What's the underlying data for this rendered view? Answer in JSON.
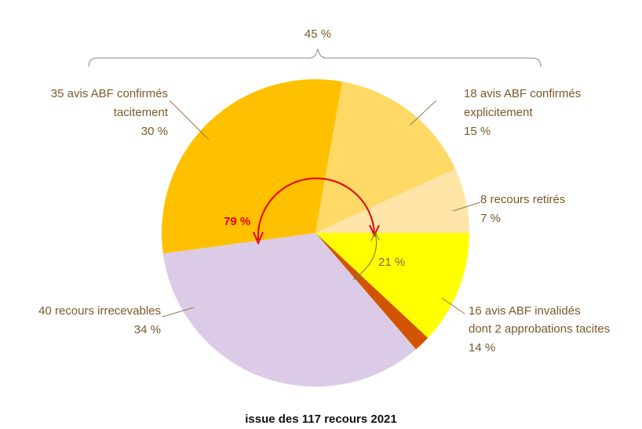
{
  "chart_data": {
    "type": "pie",
    "caption": "issue des 117 recours 2021",
    "total": 117,
    "slices": [
      {
        "lines": [
          "16 avis ABF invalidés",
          "dont 2 approbations tacites",
          "14 %"
        ],
        "value": 14,
        "color": "#ffff00"
      },
      {
        "lines": [],
        "value": 2,
        "color": "#d35400"
      },
      {
        "lines": [
          "40 recours irrecevables",
          "34 %"
        ],
        "value": 40,
        "color": "#dccbe6"
      },
      {
        "lines": [
          "35 avis ABF confirmés",
          "tacitement",
          "30 %"
        ],
        "value": 35,
        "color": "#ffc000"
      },
      {
        "lines": [
          "18 avis ABF confirmés",
          "explicitement",
          "15 %"
        ],
        "value": 18,
        "color": "#ffd966"
      },
      {
        "lines": [
          "8 recours retirés",
          "7 %"
        ],
        "value": 8,
        "color": "#ffe5a8"
      }
    ],
    "bracket_label": "45 %",
    "arc_red_label": "79 %",
    "arc_brown_label": "21 %"
  }
}
